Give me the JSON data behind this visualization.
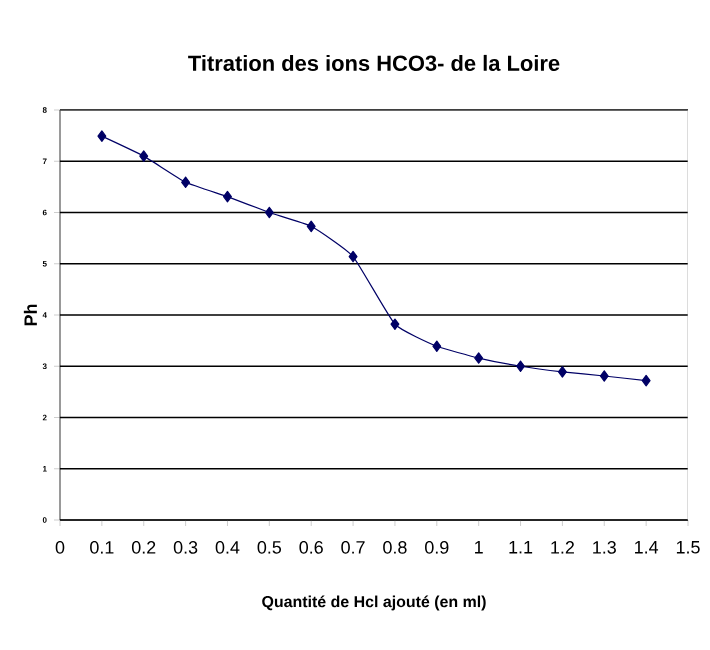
{
  "chart_data": {
    "type": "line",
    "title": "Titration des ions HCO3- de la Loire",
    "xlabel": "Quantité de Hcl ajouté (en ml)",
    "ylabel": "Ph",
    "x": [
      0.1,
      0.2,
      0.3,
      0.4,
      0.5,
      0.6,
      0.7,
      0.8,
      0.9,
      1.0,
      1.1,
      1.2,
      1.3,
      1.4
    ],
    "series": [
      {
        "color": "#000066",
        "values": [
          7.49,
          7.1,
          6.59,
          6.31,
          6.0,
          5.73,
          5.14,
          3.82,
          3.39,
          3.16,
          3.0,
          2.89,
          2.81,
          2.72
        ]
      }
    ],
    "xlim": [
      0,
      1.5
    ],
    "xticks": [
      0,
      0.1,
      0.2,
      0.3,
      0.4,
      0.5,
      0.6,
      0.7,
      0.8,
      0.9,
      1,
      1.1,
      1.2,
      1.3,
      1.4,
      1.5
    ],
    "ylim": [
      0,
      8
    ],
    "yticks": [
      0,
      1,
      2,
      3,
      4,
      5,
      6,
      7,
      8
    ],
    "grid": "y",
    "marker": "diamond",
    "line_style": "solid"
  }
}
